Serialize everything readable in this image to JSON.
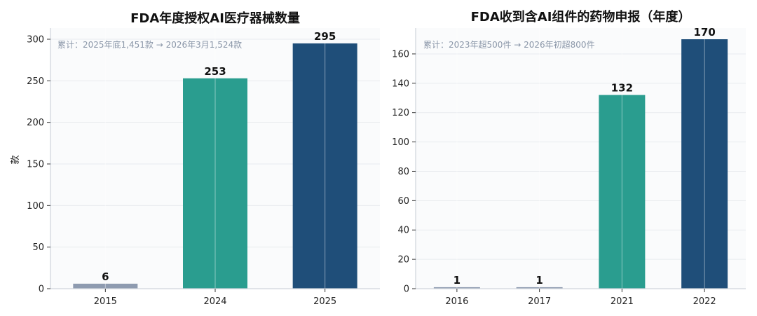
{
  "chart_data": [
    {
      "type": "bar",
      "title": "FDA年度授权AI医疗器械数量",
      "note": "累计：2025年底1,451款 → 2026年3月1,524款",
      "xlabel": "",
      "ylabel": "款",
      "categories": [
        "2015",
        "2024",
        "2025"
      ],
      "values": [
        6,
        253,
        295
      ],
      "data_labels": [
        "6",
        "253",
        "295"
      ],
      "colors": [
        "#8e9bb0",
        "#2a9d8f",
        "#1f4e79"
      ],
      "ylim": [
        0,
        300
      ],
      "yticks": [
        0,
        50,
        100,
        150,
        200,
        250,
        300
      ],
      "grid": true
    },
    {
      "type": "bar",
      "title": "FDA收到含AI组件的药物申报（年度）",
      "note": "累计：2023年超500件 → 2026年初超800件",
      "xlabel": "",
      "ylabel": "",
      "categories": [
        "2016",
        "2017",
        "2021",
        "2022"
      ],
      "values": [
        1,
        1,
        132,
        170
      ],
      "data_labels": [
        "1",
        "1",
        "132",
        "170"
      ],
      "colors": [
        "#8e9bb0",
        "#8e9bb0",
        "#2a9d8f",
        "#1f4e79"
      ],
      "ylim": [
        0,
        170
      ],
      "yticks": [
        0,
        20,
        40,
        60,
        80,
        100,
        120,
        140,
        160
      ],
      "grid": true
    }
  ]
}
